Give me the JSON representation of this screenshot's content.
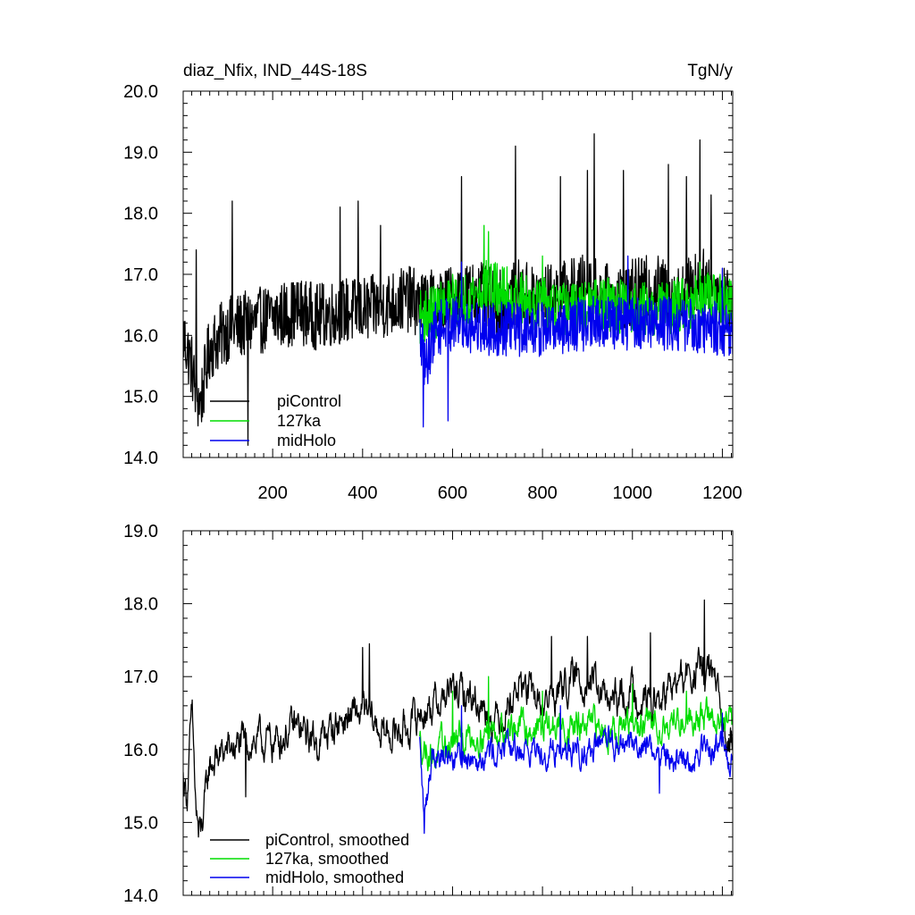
{
  "chart_data": [
    {
      "type": "line",
      "title": "diaz_Nfix, IND_44S-18S",
      "units": "TgN/y",
      "xlim": [
        1,
        1223
      ],
      "ylim": [
        14.0,
        20.0
      ],
      "xticks": [
        200,
        400,
        600,
        800,
        1000,
        1200
      ],
      "xtick_labels": [
        "200",
        "400",
        "600",
        "800",
        "1000",
        "1200"
      ],
      "yticks": [
        14.0,
        15.0,
        16.0,
        17.0,
        18.0,
        19.0,
        20.0
      ],
      "ytick_labels": [
        "14.0",
        "15.0",
        "16.0",
        "17.0",
        "18.0",
        "19.0",
        "20.0"
      ],
      "grid": false,
      "legend_position": "bottom-left",
      "series": [
        {
          "name": "piControl",
          "color": "#000000",
          "x_range": [
            1,
            1223
          ],
          "anchors_x": [
            1,
            20,
            30,
            40,
            60,
            100,
            150,
            200,
            260,
            300,
            350,
            400,
            450,
            500,
            530,
            600,
            650,
            700,
            750,
            800,
            850,
            900,
            950,
            1000,
            1050,
            1100,
            1150,
            1200,
            1223
          ],
          "anchors_y": [
            16.0,
            15.5,
            15.0,
            14.9,
            15.8,
            16.1,
            16.2,
            16.3,
            16.4,
            16.3,
            16.4,
            16.4,
            16.5,
            16.6,
            16.5,
            16.6,
            16.7,
            16.5,
            16.7,
            16.6,
            16.7,
            16.8,
            16.6,
            16.7,
            16.8,
            16.6,
            16.9,
            16.7,
            16.5
          ],
          "amplitude": 0.55,
          "peaks": [
            [
              30,
              17.4
            ],
            [
              110,
              18.2
            ],
            [
              145,
              14.2
            ],
            [
              350,
              18.1
            ],
            [
              390,
              18.2
            ],
            [
              440,
              17.8
            ],
            [
              620,
              18.6
            ],
            [
              740,
              19.1
            ],
            [
              840,
              18.6
            ],
            [
              900,
              18.7
            ],
            [
              915,
              19.3
            ],
            [
              980,
              18.7
            ],
            [
              1080,
              18.8
            ],
            [
              1120,
              18.6
            ],
            [
              1150,
              19.2
            ],
            [
              1175,
              18.3
            ]
          ]
        },
        {
          "name": "127ka",
          "color": "#00dd00",
          "x_range": [
            527,
            1223
          ],
          "anchors_x": [
            527,
            600,
            680,
            750,
            850,
            950,
            1050,
            1150,
            1223
          ],
          "anchors_y": [
            16.3,
            16.5,
            16.8,
            16.6,
            16.4,
            16.5,
            16.4,
            16.6,
            16.5
          ],
          "amplitude": 0.45,
          "peaks": [
            [
              600,
              17.0
            ],
            [
              670,
              17.8
            ],
            [
              680,
              17.7
            ],
            [
              800,
              17.3
            ],
            [
              1150,
              17.2
            ],
            [
              1195,
              17.0
            ],
            [
              1220,
              16.8
            ]
          ]
        },
        {
          "name": "midHolo",
          "color": "#0000ee",
          "x_range": [
            527,
            1223
          ],
          "anchors_x": [
            527,
            540,
            560,
            600,
            700,
            800,
            900,
            1000,
            1100,
            1200,
            1223
          ],
          "anchors_y": [
            16.0,
            15.5,
            16.1,
            16.2,
            16.1,
            16.1,
            16.2,
            16.2,
            16.2,
            16.1,
            16.1
          ],
          "amplitude": 0.45,
          "peaks": [
            [
              535,
              14.5
            ],
            [
              590,
              14.6
            ],
            [
              620,
              17.2
            ],
            [
              990,
              17.3
            ],
            [
              1200,
              17.1
            ]
          ]
        }
      ]
    },
    {
      "type": "line",
      "title": "",
      "xlim": [
        1,
        1223
      ],
      "ylim": [
        14.0,
        19.0
      ],
      "xticks": [
        200,
        400,
        600,
        800,
        1000,
        1200
      ],
      "yticks": [
        14.0,
        15.0,
        16.0,
        17.0,
        18.0,
        19.0
      ],
      "ytick_labels": [
        "14.0",
        "15.0",
        "16.0",
        "17.0",
        "18.0",
        "19.0"
      ],
      "grid": false,
      "legend_position": "bottom-left",
      "series": [
        {
          "name": "piControl, smoothed",
          "color": "#000000",
          "x_range": [
            1,
            1223
          ],
          "anchors_x": [
            1,
            10,
            20,
            30,
            40,
            60,
            100,
            150,
            200,
            250,
            300,
            350,
            400,
            450,
            500,
            530,
            600,
            650,
            700,
            750,
            800,
            850,
            900,
            950,
            1000,
            1050,
            1100,
            1150,
            1180,
            1200,
            1223
          ],
          "anchors_y": [
            15.6,
            15.4,
            16.5,
            15.1,
            14.8,
            15.8,
            16.0,
            16.1,
            16.1,
            16.3,
            16.1,
            16.4,
            16.5,
            16.2,
            16.3,
            16.5,
            16.8,
            16.7,
            16.4,
            16.9,
            16.6,
            16.9,
            17.0,
            16.6,
            16.8,
            16.6,
            16.9,
            17.1,
            17.0,
            16.3,
            16.2
          ],
          "amplitude": 0.28,
          "peaks": [
            [
              20,
              16.55
            ],
            [
              35,
              14.8
            ],
            [
              140,
              15.35
            ],
            [
              400,
              17.4
            ],
            [
              415,
              17.45
            ],
            [
              820,
              17.55
            ],
            [
              900,
              17.55
            ],
            [
              1040,
              17.6
            ],
            [
              1160,
              18.05
            ],
            [
              1170,
              17.3
            ]
          ]
        },
        {
          "name": "127ka, smoothed",
          "color": "#00dd00",
          "x_range": [
            527,
            1223
          ],
          "anchors_x": [
            527,
            560,
            600,
            700,
            800,
            900,
            1000,
            1100,
            1150,
            1223
          ],
          "anchors_y": [
            16.1,
            15.9,
            16.1,
            16.3,
            16.3,
            16.3,
            16.3,
            16.4,
            16.5,
            16.3
          ],
          "amplitude": 0.25,
          "peaks": [
            [
              600,
              16.8
            ],
            [
              680,
              17.0
            ],
            [
              800,
              16.8
            ],
            [
              1000,
              16.9
            ],
            [
              1120,
              16.8
            ]
          ]
        },
        {
          "name": "midHolo, smoothed",
          "color": "#0000ee",
          "x_range": [
            527,
            1223
          ],
          "anchors_x": [
            527,
            537,
            555,
            600,
            700,
            800,
            900,
            1000,
            1050,
            1100,
            1200,
            1223
          ],
          "anchors_y": [
            16.1,
            15.0,
            16.0,
            15.9,
            16.0,
            16.0,
            16.0,
            16.1,
            16.0,
            15.8,
            16.1,
            15.8
          ],
          "amplitude": 0.22,
          "peaks": [
            [
              537,
              14.85
            ],
            [
              620,
              16.6
            ],
            [
              840,
              16.6
            ],
            [
              1060,
              15.4
            ],
            [
              1200,
              16.5
            ]
          ]
        }
      ]
    }
  ]
}
